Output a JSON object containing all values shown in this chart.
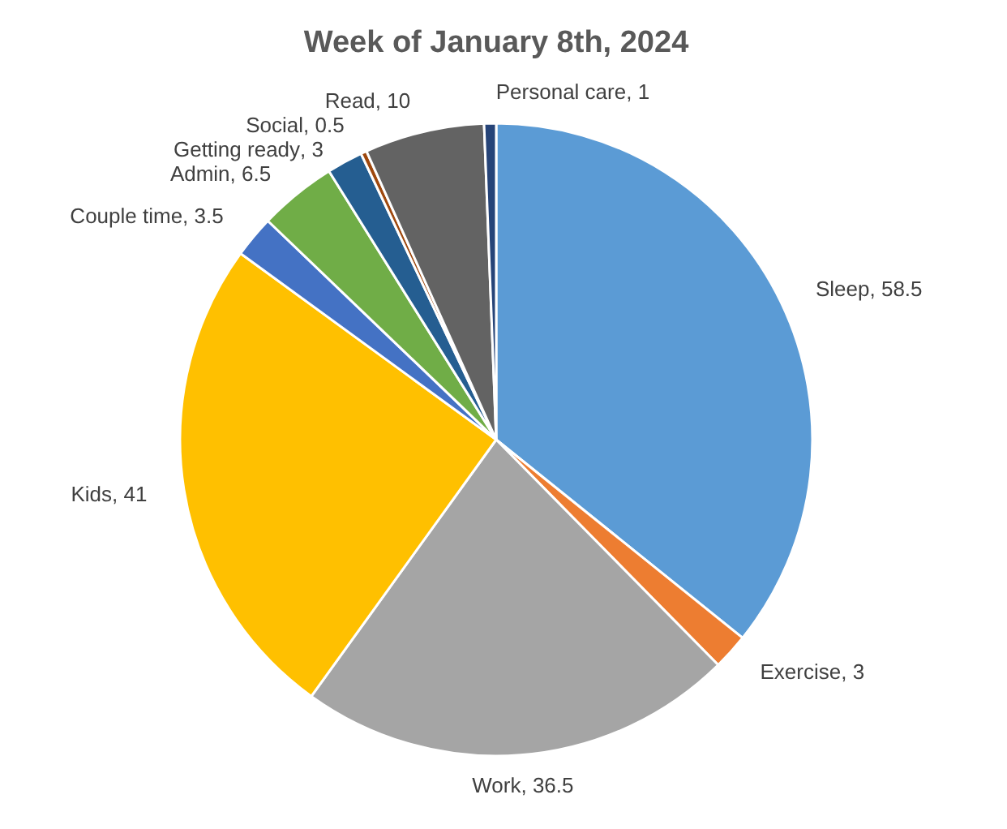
{
  "chart_data": {
    "type": "pie",
    "title": "Week of January 8th, 2024",
    "categories": [
      "Sleep",
      "Exercise",
      "Work",
      "Kids",
      "Couple time",
      "Admin",
      "Getting ready",
      "Social",
      "Read",
      "Personal care"
    ],
    "values": [
      58.5,
      3,
      36.5,
      41,
      3.5,
      6.5,
      3,
      0.5,
      10,
      1
    ],
    "value_labels": [
      ", 58.5",
      ", 3",
      ", 36.5",
      ", 41",
      ", 3.5",
      ", 6.5",
      ", 3",
      ", 0.5",
      ", 10",
      ", 1"
    ],
    "colors": [
      "#5b9bd5",
      "#ed7d31",
      "#a5a5a5",
      "#ffc000",
      "#4472c4",
      "#70ad47",
      "#255e91",
      "#9e480e",
      "#636363",
      "#264478"
    ]
  }
}
